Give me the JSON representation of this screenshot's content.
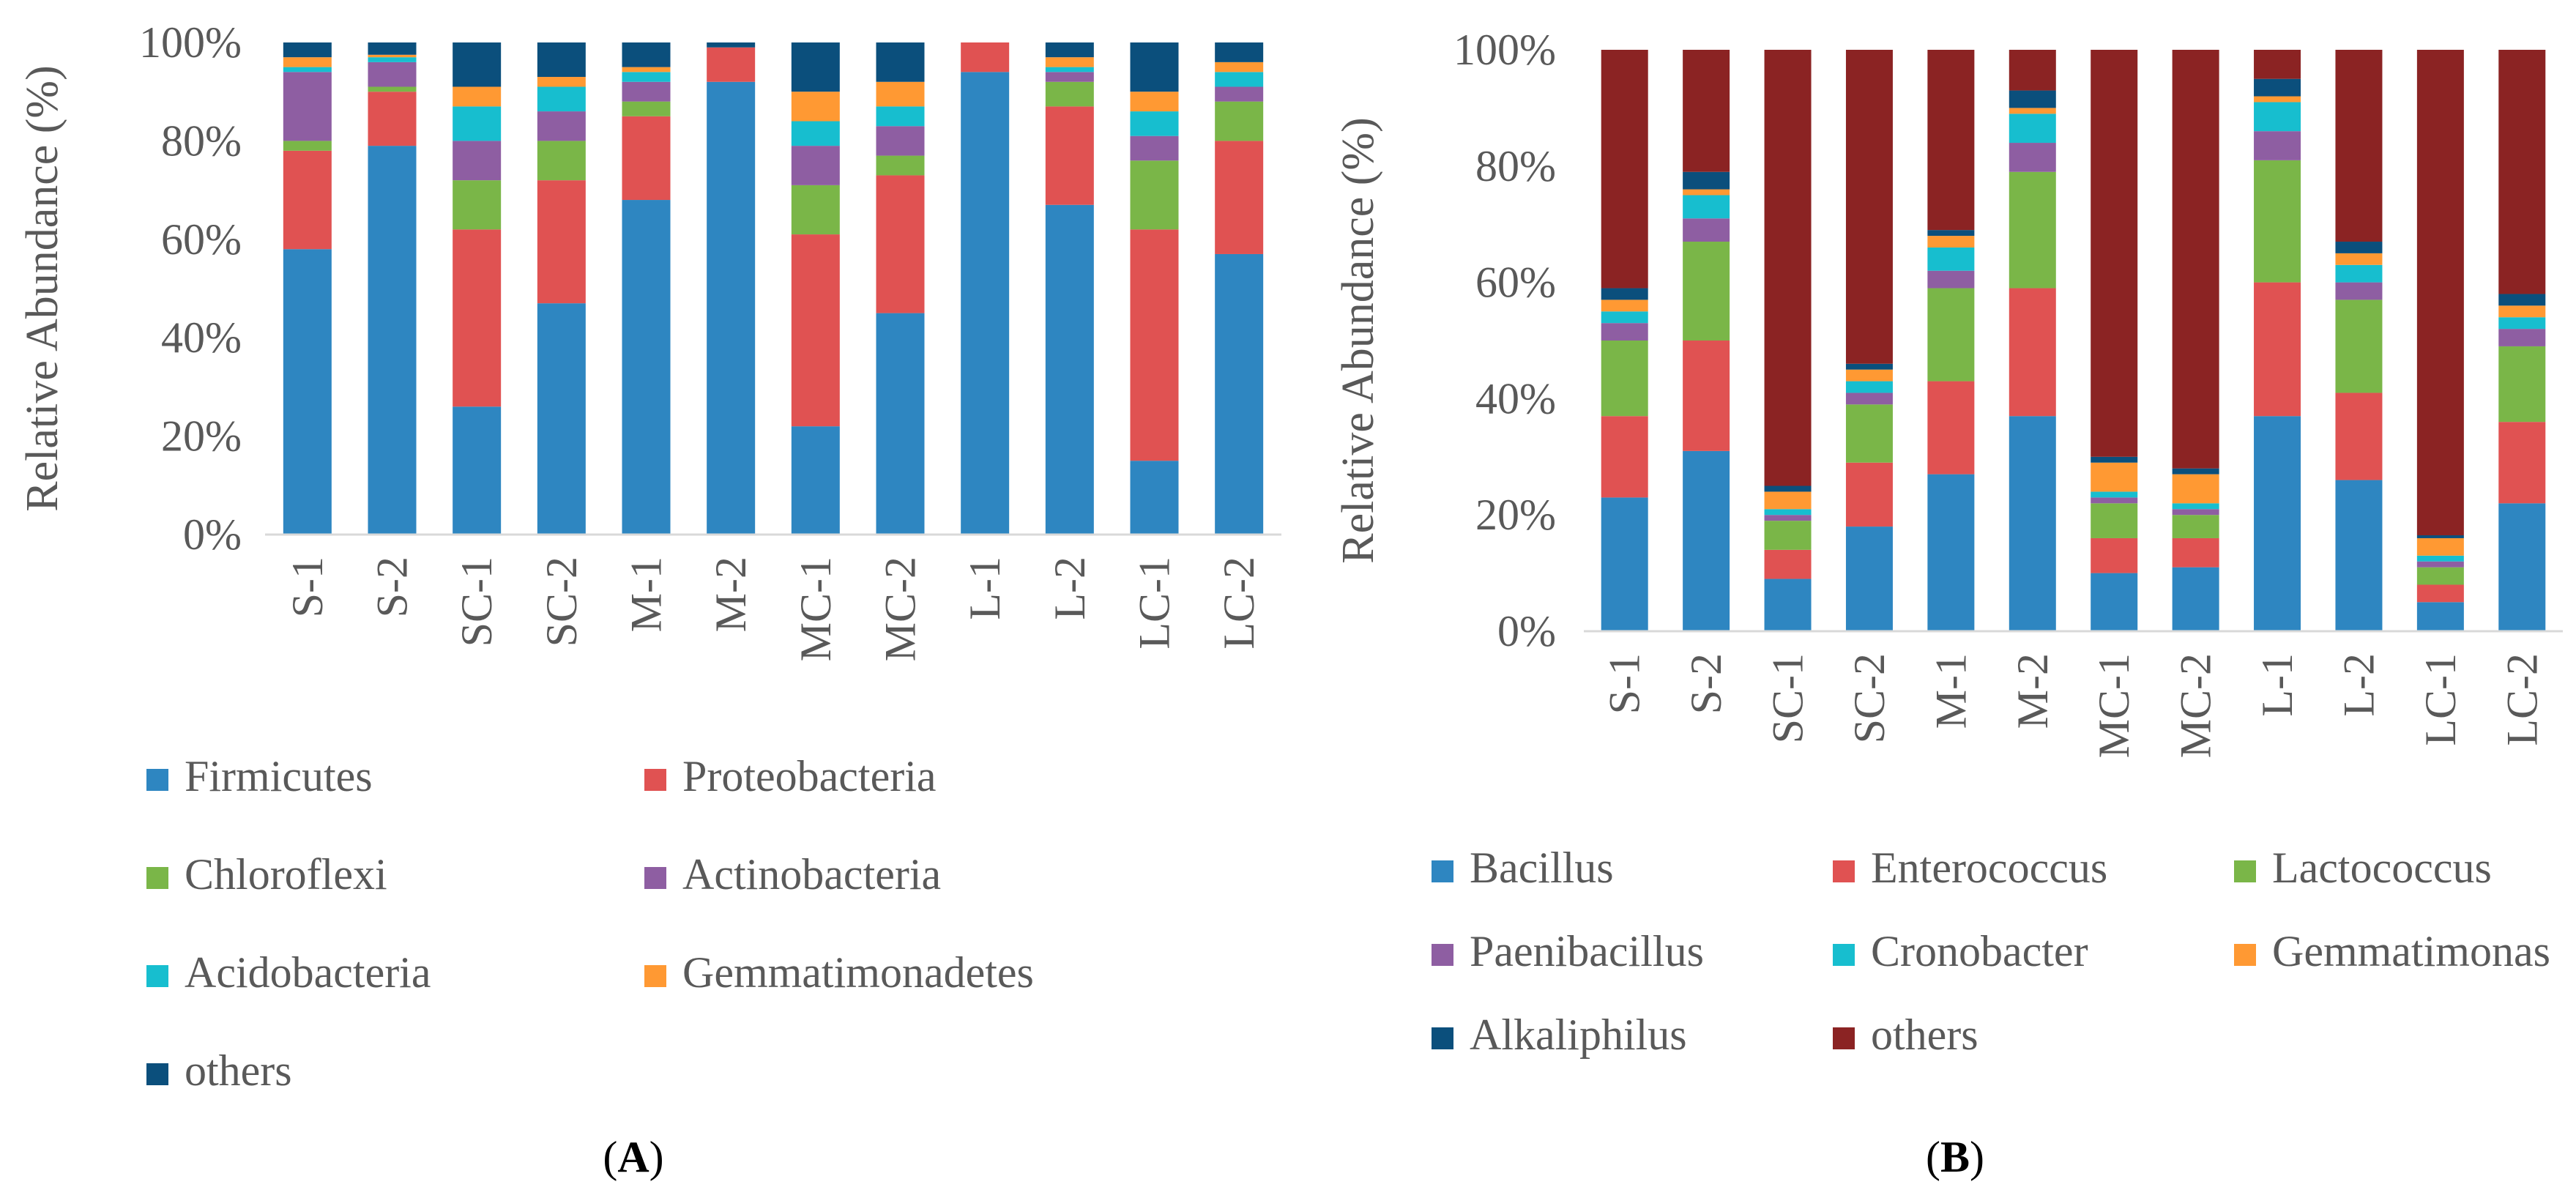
{
  "chart_data": [
    {
      "type": "bar",
      "stacked": true,
      "panel_label": "A",
      "ylabel": "Relative Abundance (%)",
      "yticks": [
        "0%",
        "20%",
        "40%",
        "60%",
        "80%",
        "100%"
      ],
      "ylim": [
        0,
        100
      ],
      "grid": false,
      "legend_position": "bottom",
      "categories": [
        "S-1",
        "S-2",
        "SC-1",
        "SC-2",
        "M-1",
        "M-2",
        "MC-1",
        "MC-2",
        "L-1",
        "L-2",
        "LC-1",
        "LC-2"
      ],
      "series": [
        {
          "name": "Firmicutes",
          "color": "#2e86c1",
          "values": [
            58,
            79,
            26,
            47,
            68,
            92,
            22,
            45,
            94,
            67,
            15,
            57
          ]
        },
        {
          "name": "Proteobacteria",
          "color": "#e05252",
          "values": [
            20,
            11,
            36,
            25,
            17,
            7,
            39,
            28,
            6,
            20,
            47,
            23
          ]
        },
        {
          "name": "Chloroflexi",
          "color": "#7ab648",
          "values": [
            2,
            1,
            10,
            8,
            3,
            0,
            10,
            4,
            0,
            5,
            14,
            8
          ]
        },
        {
          "name": "Actinobacteria",
          "color": "#8e5ea2",
          "values": [
            14,
            5,
            8,
            6,
            4,
            0,
            8,
            6,
            0,
            2,
            5,
            3
          ]
        },
        {
          "name": "Acidobacteria",
          "color": "#17becf",
          "values": [
            1,
            1,
            7,
            5,
            2,
            0,
            5,
            4,
            0,
            1,
            5,
            3
          ]
        },
        {
          "name": "Gemmatimonadetes",
          "color": "#ff9933",
          "values": [
            2,
            0.5,
            4,
            2,
            1,
            0,
            6,
            5,
            0,
            2,
            4,
            2
          ]
        },
        {
          "name": "others",
          "color": "#0b4f7c",
          "values": [
            3,
            2.5,
            9,
            7,
            5,
            1,
            10,
            8,
            0,
            3,
            10,
            4
          ]
        }
      ]
    },
    {
      "type": "bar",
      "stacked": true,
      "panel_label": "B",
      "ylabel": "Relative Abundance (%)",
      "yticks": [
        "0%",
        "20%",
        "40%",
        "60%",
        "80%",
        "100%"
      ],
      "ylim": [
        0,
        100
      ],
      "grid": false,
      "legend_position": "bottom",
      "categories": [
        "S-1",
        "S-2",
        "SC-1",
        "SC-2",
        "M-1",
        "M-2",
        "MC-1",
        "MC-2",
        "L-1",
        "L-2",
        "LC-1",
        "LC-2"
      ],
      "series": [
        {
          "name": "Bacillus",
          "color": "#2e86c1",
          "values": [
            23,
            31,
            9,
            18,
            27,
            37,
            10,
            11,
            37,
            26,
            5,
            22
          ]
        },
        {
          "name": "Enterococcus",
          "color": "#e05252",
          "values": [
            14,
            19,
            5,
            11,
            16,
            22,
            6,
            5,
            23,
            15,
            3,
            14
          ]
        },
        {
          "name": "Lactococcus",
          "color": "#7ab648",
          "values": [
            13,
            17,
            5,
            10,
            16,
            20,
            6,
            4,
            21,
            16,
            3,
            13
          ]
        },
        {
          "name": "Paenibacillus",
          "color": "#8e5ea2",
          "values": [
            3,
            4,
            1,
            2,
            3,
            5,
            1,
            1,
            5,
            3,
            1,
            3
          ]
        },
        {
          "name": "Cronobacter",
          "color": "#17becf",
          "values": [
            2,
            4,
            1,
            2,
            4,
            5,
            1,
            1,
            5,
            3,
            1,
            2
          ]
        },
        {
          "name": "Gemmatimonas",
          "color": "#ff9933",
          "values": [
            2,
            1,
            3,
            2,
            2,
            1,
            5,
            5,
            1,
            2,
            3,
            2
          ]
        },
        {
          "name": "Alkaliphilus",
          "color": "#0b4f7c",
          "values": [
            2,
            3,
            1,
            1,
            1,
            3,
            1,
            1,
            3,
            2,
            0.5,
            2
          ]
        },
        {
          "name": "others",
          "color": "#8b2323",
          "values": [
            41,
            21,
            75,
            54,
            31,
            7,
            70,
            72,
            5,
            33,
            83.5,
            42
          ]
        }
      ]
    }
  ]
}
